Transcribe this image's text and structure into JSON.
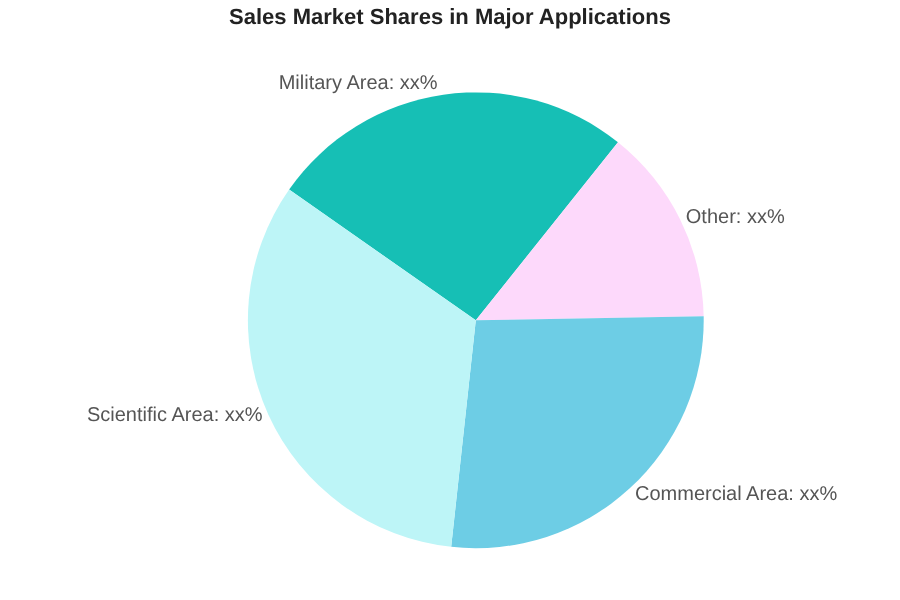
{
  "chart_data": {
    "type": "pie",
    "title": "Sales Market Shares in Major Applications",
    "categories": [
      "Military Area",
      "Other",
      "Commercial Area",
      "Scientific Area"
    ],
    "values": [
      26,
      14,
      27,
      33
    ],
    "colors": [
      "#16bfb5",
      "#fdd9fb",
      "#6dcde5",
      "#bdf5f7"
    ],
    "value_labels": [
      "xx%",
      "xx%",
      "xx%",
      "xx%"
    ],
    "legend": false
  }
}
